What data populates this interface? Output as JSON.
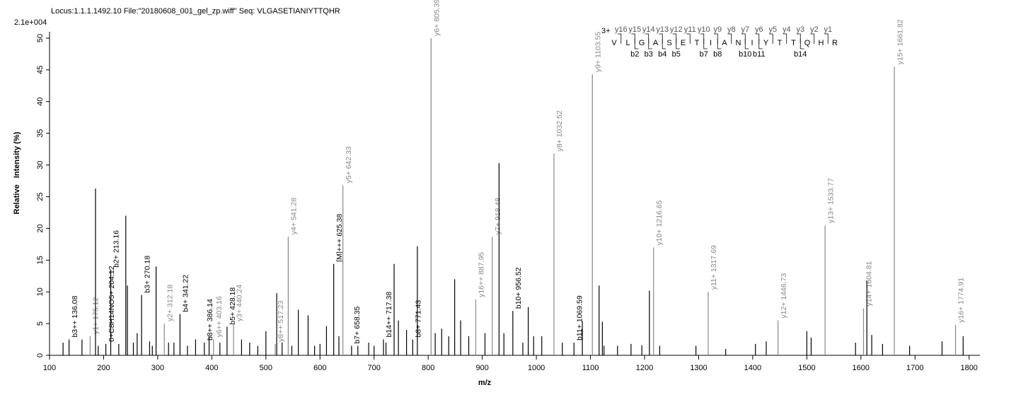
{
  "chart_data": {
    "type": "stem",
    "title": "Locus:1.1.1.1492.10 File:\"20180608_001_gel_zp.wiff\"   Seq: VLGASETIANIYTTQHR",
    "scale_note": "2.1e+004",
    "x_label": "m/z",
    "y_label": "Relative   Intensity (%)",
    "xlim": [
      100,
      1820
    ],
    "ylim": [
      0,
      51
    ],
    "xticks": [
      100,
      200,
      300,
      400,
      500,
      600,
      700,
      800,
      900,
      1000,
      1100,
      1200,
      1300,
      1400,
      1500,
      1600,
      1700,
      1800
    ],
    "yticks": [
      0,
      5,
      10,
      15,
      20,
      25,
      30,
      35,
      40,
      45,
      50
    ],
    "x": [
      136.08,
      175.12,
      204.12,
      213.16,
      270.18,
      312.18,
      341.22,
      386.14,
      403.16,
      428.18,
      440.24,
      517.23,
      541.28,
      625.38,
      642.33,
      658.35,
      717.38,
      771.43,
      805.39,
      887.95,
      918.48,
      956.52,
      1032.52,
      1069.59,
      1103.55,
      1216.65,
      1317.69,
      1446.73,
      1533.77,
      1604.81,
      1661.82,
      1774.91,
      185,
      241,
      244,
      297,
      520,
      560,
      578,
      737,
      780,
      849,
      931,
      985,
      1116,
      1122,
      1209,
      1611,
      1789,
      125,
      160,
      190,
      228,
      255,
      262,
      285,
      290,
      320,
      330,
      355,
      370,
      395,
      415,
      455,
      470,
      485,
      500,
      530,
      548,
      590,
      600,
      612,
      635,
      670,
      690,
      700,
      722,
      745,
      760,
      813,
      825,
      838,
      860,
      875,
      905,
      940,
      975,
      995,
      1010,
      1048,
      1085,
      1125,
      1150,
      1175,
      1195,
      1228,
      1295,
      1350,
      1405,
      1425,
      1500,
      1508,
      1590,
      1620,
      1640,
      1690,
      1750
    ],
    "values": [
      2.5,
      3,
      1.8,
      13.5,
      9.5,
      5,
      6.5,
      2,
      2.5,
      4.5,
      5,
      1.8,
      18.7,
      14.4,
      26.8,
      1.5,
      2.5,
      2.5,
      50,
      8.8,
      18.7,
      7,
      31.8,
      2,
      44.3,
      17,
      10,
      5.5,
      20.5,
      7.4,
      45.5,
      4.8,
      26.3,
      22,
      11,
      14,
      9.8,
      7.2,
      6.3,
      14.4,
      17.2,
      12,
      30.3,
      7.6,
      11,
      5.3,
      10.2,
      11.8,
      3,
      2,
      2.5,
      1.5,
      1.8,
      2,
      3.5,
      2.2,
      1.5,
      2,
      2,
      1.5,
      2.5,
      3,
      2,
      2.5,
      2,
      1.5,
      3.8,
      2,
      1.5,
      1.5,
      1.8,
      4.6,
      3,
      1.5,
      2,
      1.5,
      2,
      5.5,
      4,
      3.5,
      4.2,
      3,
      5.5,
      3,
      3.5,
      3.5,
      2,
      3,
      3,
      2,
      5.4,
      1.5,
      1.5,
      1.8,
      1.6,
      1.5,
      1.5,
      1,
      1.8,
      2.2,
      3.8,
      2.8,
      2,
      3.2,
      1.8,
      1.5,
      2.2
    ],
    "labels": [
      "b3++ 136.08",
      "y1+ 175.12",
      "0+C8H14NO5+ 204.12",
      "b2+ 213.16",
      "b3+ 270.18",
      "y2+ 312.18",
      "b4+ 341.22",
      "b8++ 386.14",
      "y6++ 403.16",
      "b5+ 428.18",
      "y3+ 440.24",
      "y8++ 517.23",
      "y4+ 541.28",
      "[M]+++ 625.38",
      "y5+ 642.33",
      "b7+ 658.35",
      "b14++ 717.38",
      "b8+ 771.43",
      "y6+ 805.39",
      "y16++ 887.95",
      "y7+ 918.48",
      "b10+ 956.52",
      "y8+ 1032.52",
      "b11+ 1069.59",
      "y9+ 1103.55",
      "y10+ 1216.65",
      "y11+ 1317.69",
      "y12+ 1446.73",
      "y13+ 1533.77",
      "y14+ 1604.81",
      "y15+ 1661.82",
      "y16+ 1774.91",
      null,
      null,
      null,
      null,
      null,
      null,
      null,
      null,
      null,
      null,
      null,
      null,
      null,
      null,
      null,
      null,
      null,
      null,
      null,
      null,
      null,
      null,
      null,
      null,
      null,
      null,
      null,
      null,
      null,
      null,
      null,
      null,
      null,
      null,
      null,
      null,
      null,
      null,
      null,
      null,
      null,
      null,
      null,
      null,
      null,
      null,
      null,
      null,
      null,
      null,
      null,
      null,
      null,
      null,
      null,
      null,
      null,
      null,
      null,
      null,
      null,
      null,
      null,
      null,
      null,
      null,
      null,
      null,
      null,
      null,
      null
    ],
    "label_color": "#888888",
    "b_color": "#000000",
    "peak_color": "#000000",
    "sequence": {
      "charge": "3+",
      "residues": [
        "V",
        "L",
        "G",
        "A",
        "S",
        "E",
        "T",
        "I",
        "A",
        "N",
        "I",
        "Y",
        "T",
        "T",
        "Q",
        "H",
        "R"
      ],
      "y_ions": [
        "y16",
        "y15",
        "y14",
        "y13",
        "y12",
        "y11",
        "y10",
        "y9",
        "y8",
        "y7",
        "y6",
        "y5",
        "y4",
        "y3",
        "y2",
        "y1"
      ],
      "b_ions": [
        null,
        "b2",
        "b3",
        "b4",
        "b5",
        null,
        "b7",
        "b8",
        null,
        "b10",
        "b11",
        null,
        null,
        "b14",
        null,
        null
      ]
    }
  }
}
